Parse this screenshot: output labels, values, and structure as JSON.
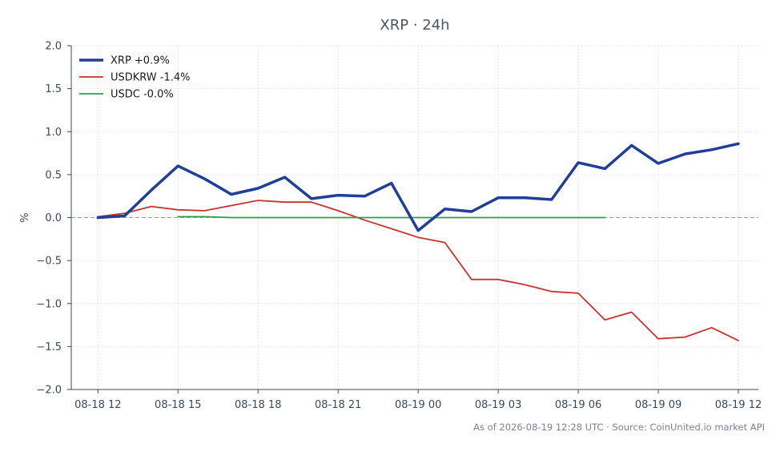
{
  "chart_data": {
    "type": "line",
    "title": "XRP · 24h",
    "xlabel": "",
    "ylabel": "%",
    "ylim": [
      -2.0,
      2.0
    ],
    "yticks": [
      2.0,
      1.5,
      1.0,
      0.5,
      0.0,
      -0.5,
      -1.0,
      -1.5,
      -2.0
    ],
    "ytick_labels": [
      "2.0",
      "1.5",
      "1.0",
      "0.5",
      "0.0",
      "−0.5",
      "−1.0",
      "−1.5",
      "−2.0"
    ],
    "xlim": [
      "2026-08-18 11:00",
      "2026-08-19 12:45"
    ],
    "xticks": [
      "2026-08-18 12:00",
      "2026-08-18 15:00",
      "2026-08-18 18:00",
      "2026-08-18 21:00",
      "2026-08-19 00:00",
      "2026-08-19 03:00",
      "2026-08-19 06:00",
      "2026-08-19 09:00",
      "2026-08-19 12:00"
    ],
    "xtick_labels": [
      "08-18 12",
      "08-18 15",
      "08-18 18",
      "08-18 21",
      "08-19 00",
      "08-19 03",
      "08-19 06",
      "08-19 09",
      "08-19 12"
    ],
    "grid": true,
    "reference_line": 0.0,
    "legend_position": "top-left",
    "series": [
      {
        "name": "XRP +0.9%",
        "color": "#1f3f99",
        "x": [
          "2026-08-18 12:00",
          "2026-08-18 13:00",
          "2026-08-18 14:00",
          "2026-08-18 15:00",
          "2026-08-18 16:00",
          "2026-08-18 17:00",
          "2026-08-18 18:00",
          "2026-08-18 19:00",
          "2026-08-18 20:00",
          "2026-08-18 21:00",
          "2026-08-18 22:00",
          "2026-08-18 23:00",
          "2026-08-19 00:00",
          "2026-08-19 01:00",
          "2026-08-19 02:00",
          "2026-08-19 03:00",
          "2026-08-19 04:00",
          "2026-08-19 05:00",
          "2026-08-19 06:00",
          "2026-08-19 07:00",
          "2026-08-19 08:00",
          "2026-08-19 09:00",
          "2026-08-19 10:00",
          "2026-08-19 11:00",
          "2026-08-19 12:00"
        ],
        "y": [
          0.0,
          0.02,
          0.32,
          0.6,
          0.45,
          0.27,
          0.34,
          0.47,
          0.22,
          0.26,
          0.25,
          0.4,
          -0.15,
          0.1,
          0.07,
          0.23,
          0.23,
          0.21,
          0.64,
          0.57,
          0.84,
          0.63,
          0.74,
          0.79,
          0.86
        ]
      },
      {
        "name": "USDKRW -1.4%",
        "color": "#c8322f",
        "x": [
          "2026-08-18 12:00",
          "2026-08-18 13:00",
          "2026-08-18 14:00",
          "2026-08-18 15:00",
          "2026-08-18 16:00",
          "2026-08-18 17:00",
          "2026-08-18 18:00",
          "2026-08-18 19:00",
          "2026-08-18 20:00",
          "2026-08-18 21:00",
          "2026-08-18 22:00",
          "2026-08-18 23:00",
          "2026-08-19 00:00",
          "2026-08-19 01:00",
          "2026-08-19 02:00",
          "2026-08-19 03:00",
          "2026-08-19 04:00",
          "2026-08-19 05:00",
          "2026-08-19 06:00",
          "2026-08-19 07:00",
          "2026-08-19 08:00",
          "2026-08-19 09:00",
          "2026-08-19 10:00",
          "2026-08-19 11:00",
          "2026-08-19 12:00"
        ],
        "y": [
          0.01,
          0.05,
          0.13,
          0.09,
          0.08,
          0.14,
          0.2,
          0.18,
          0.18,
          0.08,
          -0.03,
          -0.13,
          -0.23,
          -0.29,
          -0.72,
          -0.72,
          -0.78,
          -0.86,
          -0.88,
          -1.19,
          -1.1,
          -1.41,
          -1.39,
          -1.28,
          -1.43
        ]
      },
      {
        "name": "USDC -0.0%",
        "color": "#2ca048",
        "x": [
          "2026-08-18 15:00",
          "2026-08-18 16:00",
          "2026-08-18 17:00",
          "2026-08-18 18:00",
          "2026-08-18 19:00",
          "2026-08-18 20:00",
          "2026-08-18 21:00",
          "2026-08-18 22:00",
          "2026-08-18 23:00",
          "2026-08-19 00:00",
          "2026-08-19 01:00",
          "2026-08-19 02:00",
          "2026-08-19 03:00",
          "2026-08-19 04:00",
          "2026-08-19 05:00",
          "2026-08-19 06:00",
          "2026-08-19 07:00"
        ],
        "y": [
          0.01,
          0.01,
          0.0,
          0.0,
          0.0,
          0.0,
          0.0,
          0.0,
          0.0,
          0.0,
          0.0,
          0.0,
          0.0,
          0.0,
          0.0,
          0.0,
          0.0
        ]
      }
    ],
    "footer": "As of 2026-08-19 12:28 UTC · Source: CoinUnited.io market API"
  }
}
